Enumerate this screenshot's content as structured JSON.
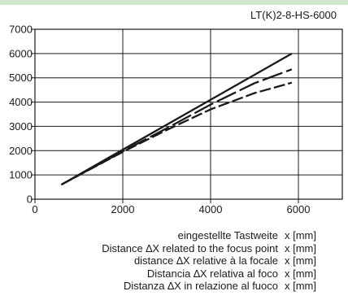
{
  "colors": {
    "top_band": "#cfe8cc",
    "ink": "#1a1a1a"
  },
  "chart_data": {
    "type": "line",
    "title": "LT(K)2-8-HS-6000",
    "xlim": [
      0,
      7000
    ],
    "ylim": [
      0,
      7000
    ],
    "x_ticks": [
      0,
      2000,
      4000,
      6000
    ],
    "y_ticks": [
      0,
      1000,
      2000,
      3000,
      4000,
      5000,
      6000,
      7000
    ],
    "x_tick_labels": [
      "0",
      "2000",
      "4000",
      "6000"
    ],
    "y_tick_labels": [
      "0",
      "1000",
      "2000",
      "3000",
      "4000",
      "5000",
      "6000",
      "7000"
    ],
    "grid": true,
    "series": [
      {
        "style": "solid",
        "points": [
          [
            600,
            600
          ],
          [
            5850,
            6000
          ]
        ]
      },
      {
        "style": "long-dash",
        "points": [
          [
            600,
            600
          ],
          [
            2000,
            1970
          ],
          [
            3000,
            2920
          ],
          [
            4000,
            3900
          ],
          [
            5000,
            4780
          ],
          [
            5850,
            5350
          ]
        ]
      },
      {
        "style": "dash",
        "points": [
          [
            600,
            600
          ],
          [
            2000,
            1950
          ],
          [
            3000,
            2850
          ],
          [
            4000,
            3700
          ],
          [
            5000,
            4370
          ],
          [
            5850,
            4800
          ]
        ]
      }
    ]
  },
  "legend": {
    "lines": [
      {
        "label": "eingestellte Tastweite",
        "unit": "x [mm]"
      },
      {
        "label": "Distance ∆X  related to the focus point",
        "unit": "x [mm]"
      },
      {
        "label": "distance ∆X relative à la focale",
        "unit": "x [mm]"
      },
      {
        "label": "Distancia ∆X  relativa al foco",
        "unit": "x [mm]"
      },
      {
        "label": "Distanza ∆X  in relazione al fuoco",
        "unit": "x [mm]"
      }
    ]
  }
}
